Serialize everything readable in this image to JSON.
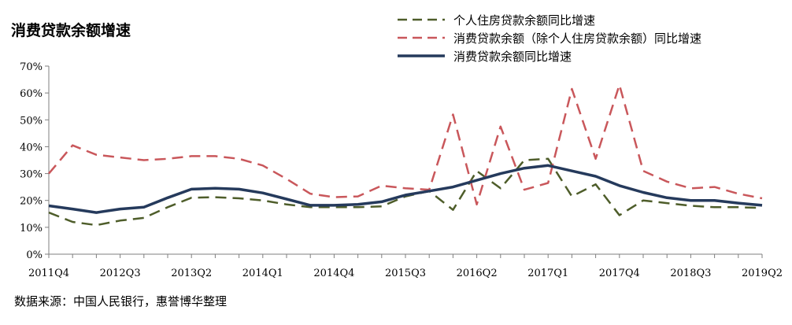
{
  "title": "消费贷款余额增速",
  "source": "数据来源：中国人民银行，惠誉博华整理",
  "chart_data": {
    "type": "line",
    "title": "消费贷款余额增速",
    "xlabel": "",
    "ylabel": "",
    "ylim": [
      0,
      70
    ],
    "yticks": [
      "0%",
      "10%",
      "20%",
      "30%",
      "40%",
      "50%",
      "60%",
      "70%"
    ],
    "x": [
      "2011Q4",
      "2012Q1",
      "2012Q2",
      "2012Q3",
      "2012Q4",
      "2013Q1",
      "2013Q2",
      "2013Q3",
      "2013Q4",
      "2014Q1",
      "2014Q2",
      "2014Q3",
      "2014Q4",
      "2015Q1",
      "2015Q2",
      "2015Q3",
      "2015Q4",
      "2016Q1",
      "2016Q2",
      "2016Q3",
      "2016Q4",
      "2017Q1",
      "2017Q2",
      "2017Q3",
      "2017Q4",
      "2018Q1",
      "2018Q2",
      "2018Q3",
      "2018Q4",
      "2019Q1",
      "2019Q2"
    ],
    "xtick_labels": [
      "2011Q4",
      "2012Q3",
      "2013Q2",
      "2014Q1",
      "2014Q4",
      "2015Q3",
      "2016Q2",
      "2017Q1",
      "2017Q4",
      "2018Q3",
      "2019Q2"
    ],
    "grid": false,
    "legend_position": "top-right",
    "series": [
      {
        "name": "个人住房贷款余额同比增速",
        "color": "#4e5d2a",
        "style": "dashed",
        "values": [
          15.5,
          12,
          10.8,
          12.5,
          13.5,
          17.5,
          21,
          21.2,
          20.8,
          20,
          18.5,
          17.5,
          17.5,
          17.5,
          17.8,
          21.5,
          23.5,
          16.5,
          31,
          24.5,
          35,
          35.5,
          21.5,
          26,
          14.5,
          20,
          19,
          18,
          17.5,
          17.5,
          17.2
        ]
      },
      {
        "name": "消费贷款余额（除个人住房贷款余额）同比增速",
        "color": "#c9575b",
        "style": "dashed",
        "values": [
          30,
          40.5,
          37,
          36,
          35,
          35.5,
          36.5,
          36.5,
          35.5,
          33,
          28,
          22.5,
          21.2,
          21.5,
          25.5,
          24.5,
          24,
          52,
          18.5,
          47.5,
          24,
          26.5,
          61.5,
          35.5,
          63,
          31,
          27,
          24.5,
          25,
          22.5,
          20.8
        ]
      },
      {
        "name": "消费贷款余额同比增速",
        "color": "#253a5c",
        "style": "solid",
        "values": [
          18,
          16.8,
          15.5,
          16.8,
          17.5,
          21,
          24.2,
          24.5,
          24.2,
          22.8,
          20.5,
          18.2,
          18.2,
          18.5,
          19.5,
          22,
          23.5,
          25,
          27.5,
          30,
          32,
          33,
          31,
          29,
          25.5,
          23,
          21,
          20,
          20,
          19,
          18.2
        ]
      }
    ]
  }
}
